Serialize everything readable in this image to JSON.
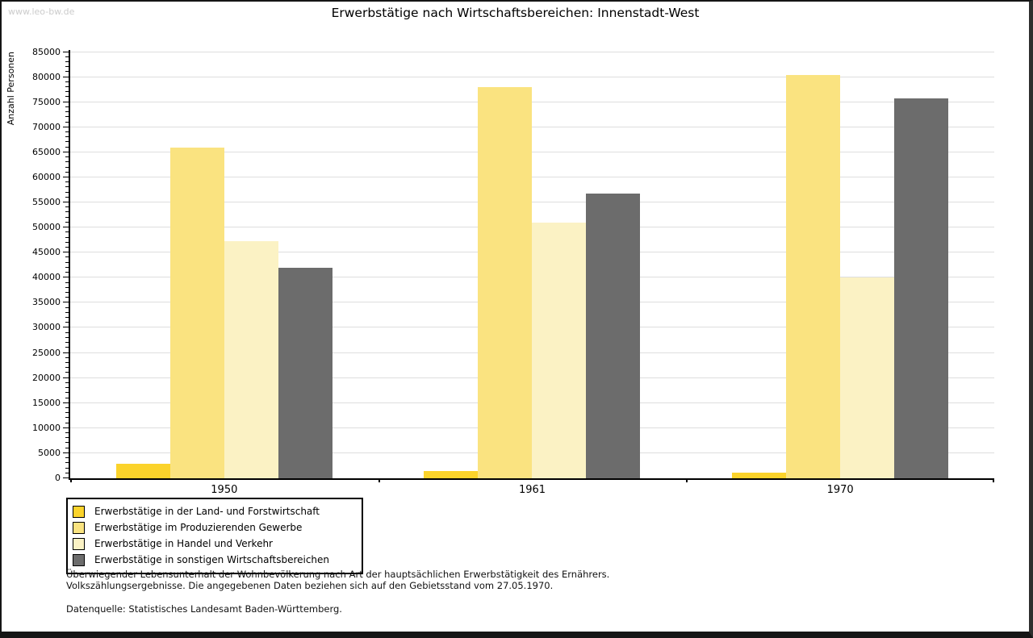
{
  "watermark": "www.leo-bw.de",
  "title": "Erwerbstätige nach Wirtschaftsbereichen: Innenstadt-West",
  "chart_data": {
    "type": "bar",
    "title": "Erwerbstätige nach Wirtschaftsbereichen: Innenstadt-West",
    "categories": [
      "1950",
      "1961",
      "1970"
    ],
    "series": [
      {
        "name": "Erwerbstätige in der Land- und Forstwirtschaft",
        "color": "#fbd32b",
        "values": [
          2900,
          1500,
          1100
        ]
      },
      {
        "name": "Erwerbstätige im Produzierenden Gewerbe",
        "color": "#fae380",
        "values": [
          66000,
          78000,
          80400
        ]
      },
      {
        "name": "Erwerbstätige in Handel und Verkehr",
        "color": "#fbf2c4",
        "values": [
          47300,
          51000,
          40000
        ]
      },
      {
        "name": "Erwerbstätige in sonstigen Wirtschaftsbereichen",
        "color": "#6c6c6c",
        "values": [
          42000,
          56700,
          75700
        ]
      }
    ],
    "xlabel": "",
    "ylabel": "Anzahl Personen",
    "ylim": [
      0,
      85000
    ],
    "ytick_step": 5000,
    "yminor_step": 1000,
    "grid": "horizontal-major",
    "gridline_color": "#dedede",
    "legend_position": "bottom-left"
  },
  "footnotes": {
    "line1": "Überwiegender Lebensunterhalt der Wohnbevölkerung nach Art der hauptsächlichen Erwerbstätigkeit des Ernährers.",
    "line2": "Volkszählungsergebnisse. Die angegebenen Daten beziehen sich auf den Gebietsstand vom 27.05.1970.",
    "source": "Datenquelle: Statistisches Landesamt Baden-Württemberg."
  }
}
